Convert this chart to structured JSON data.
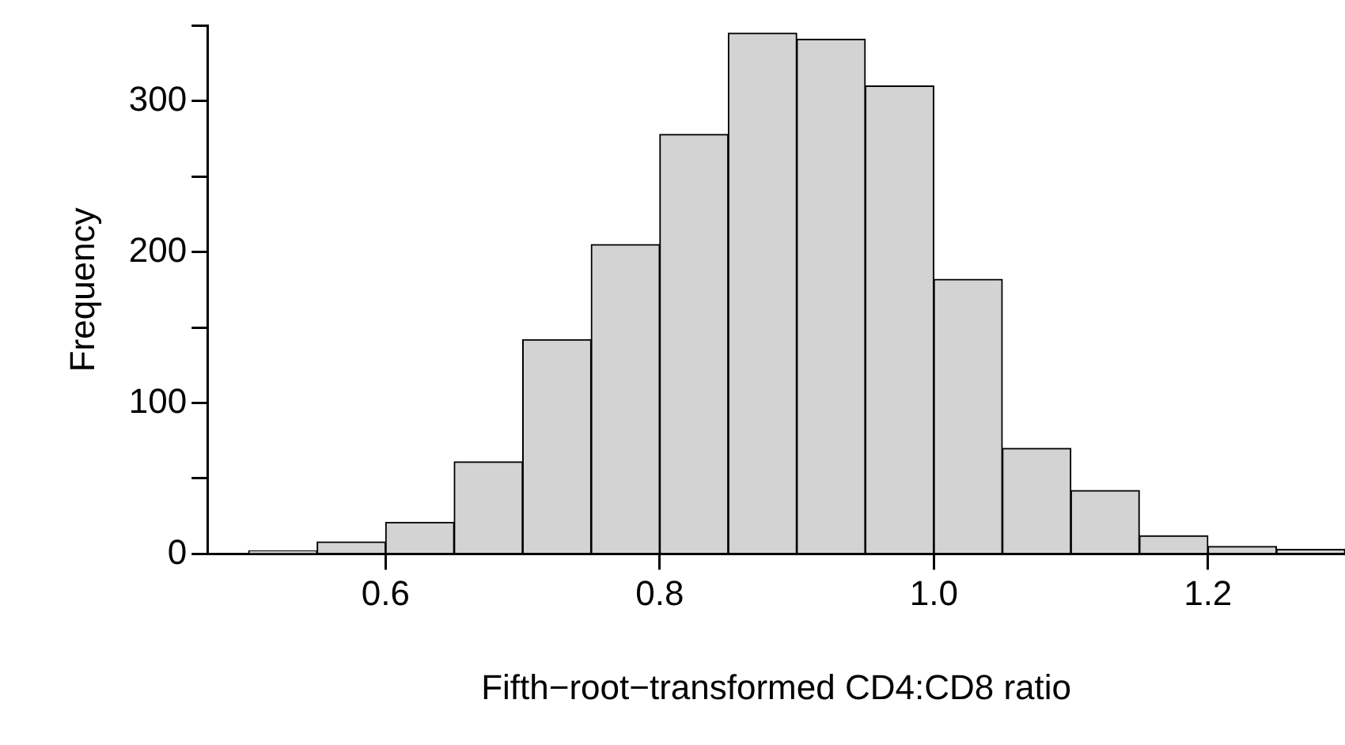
{
  "chart_data": {
    "type": "histogram",
    "xlabel": "Fifth−root−transformed CD4:CD8 ratio",
    "ylabel": "Frequency",
    "bins": [
      0.5,
      0.55,
      0.6,
      0.65,
      0.7,
      0.75,
      0.8,
      0.85,
      0.9,
      0.95,
      1.0,
      1.05,
      1.1,
      1.15,
      1.2,
      1.25,
      1.3
    ],
    "values": [
      2,
      8,
      21,
      61,
      142,
      205,
      278,
      345,
      341,
      310,
      182,
      70,
      42,
      12,
      5,
      3
    ],
    "color": "#d3d3d3",
    "xlim": [
      0.47,
      1.3
    ],
    "xticks": [
      {
        "value": 0.6,
        "label": "0.6"
      },
      {
        "value": 0.8,
        "label": "0.8"
      },
      {
        "value": 1.0,
        "label": "1.0"
      },
      {
        "value": 1.2,
        "label": "1.2"
      }
    ],
    "ylim": [
      0,
      350
    ],
    "yticks": [
      0,
      {
        "value": 50,
        "label": null
      },
      100,
      {
        "value": 150,
        "label": null
      },
      200,
      {
        "value": 250,
        "label": null
      },
      300,
      {
        "value": 350,
        "label": null
      }
    ],
    "grid": false,
    "legend": false
  }
}
